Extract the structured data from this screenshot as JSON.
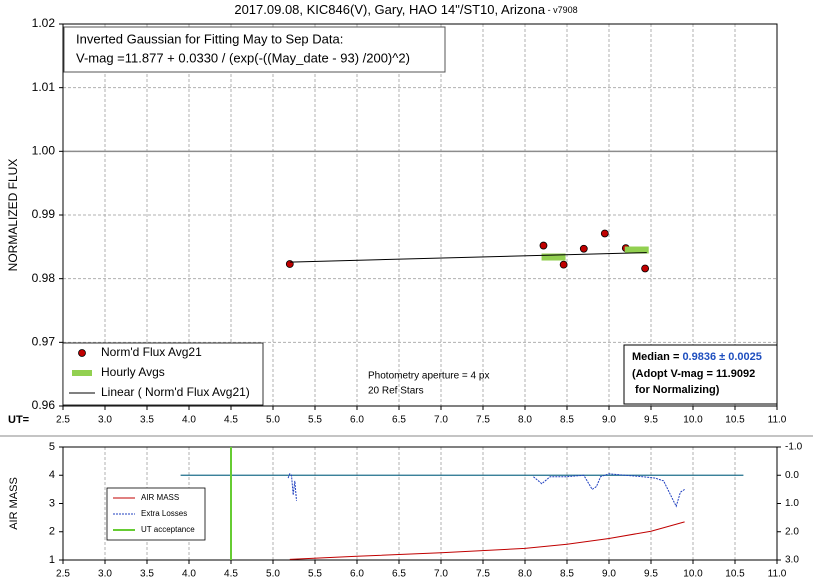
{
  "chart_data": [
    {
      "type": "scatter",
      "title": "2017.09.08, KIC846(V), Gary, HAO 14\"/ST10, Arizona",
      "title_suffix": " - v7908",
      "y_label": "NORMALIZED FLUX",
      "x_prefix": "UT=",
      "xlim": [
        2.5,
        11.0
      ],
      "xticks": [
        2.5,
        {
          "value": 3,
          "label": "3.0"
        },
        3.5,
        {
          "value": 4,
          "label": "4.0"
        },
        4.5,
        {
          "value": 5,
          "label": "5.0"
        },
        5.5,
        {
          "value": 6,
          "label": "6.0"
        },
        6.5,
        {
          "value": 7,
          "label": "7.0"
        },
        7.5,
        {
          "value": 8,
          "label": "8.0"
        },
        8.5,
        {
          "value": 9,
          "label": "9.0"
        },
        9.5,
        {
          "value": 10,
          "label": "10.0"
        },
        10.5,
        {
          "value": 11,
          "label": "11.0"
        }
      ],
      "ylim": [
        0.96,
        1.02
      ],
      "yticks": [
        0.96,
        0.97,
        0.98,
        0.99,
        {
          "value": 1,
          "label": "1.00"
        },
        1.01,
        1.02
      ],
      "grid": "both",
      "hline": 1,
      "series": [
        {
          "name": "Norm'd Flux Avg21",
          "style": "marker",
          "color": "#c00000",
          "x": [
            5.2,
            8.22,
            8.46,
            8.7,
            8.95,
            9.2,
            9.43
          ],
          "values": [
            0.9823,
            0.9852,
            0.9822,
            0.9847,
            0.9871,
            0.9848,
            0.9816
          ]
        },
        {
          "name": "Hourly Avgs",
          "style": "bar",
          "color": "#92d050",
          "x": [
            8.34,
            9.33
          ],
          "values": [
            0.9834,
            0.9845
          ]
        },
        {
          "name": "Linear ( Norm'd Flux Avg21)",
          "style": "line",
          "color": "#000000",
          "x": [
            5.2,
            9.45
          ],
          "values": [
            0.9826,
            0.9841
          ]
        }
      ],
      "fit_box": [
        "Inverted Gaussian for Fitting May to Sep Data:",
        "V-mag =11.877 + 0.0330 / (exp(-((May_date - 93) /200)^2)"
      ],
      "notes": [
        "Photometry aperture = 4 px",
        "20 Ref Stars"
      ],
      "median_box": {
        "label": "Median = ",
        "value": "0.9836 ± 0.0025",
        "lines": [
          "(Adopt V-mag = 11.9092",
          " for Normalizing)"
        ]
      }
    },
    {
      "type": "line",
      "y_label": "AIR MASS",
      "xlim": [
        2.5,
        11.0
      ],
      "xticks": [
        2.5,
        {
          "value": 3,
          "label": "3.0"
        },
        3.5,
        {
          "value": 4,
          "label": "4.0"
        },
        4.5,
        {
          "value": 5,
          "label": "5.0"
        },
        5.5,
        {
          "value": 6,
          "label": "6.0"
        },
        6.5,
        {
          "value": 7,
          "label": "7.0"
        },
        7.5,
        {
          "value": 8,
          "label": "8.0"
        },
        8.5,
        {
          "value": 9,
          "label": "9.0"
        },
        9.5,
        {
          "value": 10,
          "label": "10.0"
        },
        10.5,
        {
          "value": 11,
          "label": "11.0"
        }
      ],
      "ylim": [
        1,
        5
      ],
      "yticks": [
        1,
        2,
        3,
        4,
        5
      ],
      "y2lim": [
        3,
        -1
      ],
      "y2ticks": [
        {
          "value": -1,
          "label": "-1.0"
        },
        {
          "value": 0,
          "label": "0.0"
        },
        {
          "value": 1,
          "label": "1.0"
        },
        {
          "value": 2,
          "label": "2.0"
        },
        {
          "value": 3,
          "label": "3.0"
        }
      ],
      "grid": "x",
      "reference_line": {
        "axis": "y2",
        "value": 0,
        "x": [
          3.9,
          10.6
        ],
        "color": "#1f6f8b"
      },
      "series": [
        {
          "name": "AIR MASS",
          "style": "line",
          "color": "#c00000",
          "x": [
            5.2,
            6.0,
            7.0,
            8.0,
            8.5,
            9.0,
            9.5,
            9.9
          ],
          "values": [
            1.02,
            1.13,
            1.26,
            1.41,
            1.56,
            1.76,
            2.02,
            2.35
          ]
        },
        {
          "name": "Extra Losses",
          "style": "dotted",
          "color": "#1f3fbf",
          "axis": "y2",
          "x": [
            5.18,
            5.2,
            5.22,
            5.24,
            5.26,
            5.28,
            8.0,
            8.1,
            8.2,
            8.3,
            8.5,
            8.7,
            8.8,
            8.85,
            8.9,
            9.0,
            9.2,
            9.4,
            9.55,
            9.65,
            9.75,
            9.8,
            9.85,
            9.9
          ],
          "values": [
            0.1,
            -0.05,
            0.0,
            0.7,
            0.2,
            0.9,
            null,
            0.05,
            0.3,
            0.05,
            0.05,
            0.0,
            0.5,
            0.4,
            0.05,
            -0.05,
            0.0,
            0.05,
            0.1,
            0.2,
            0.8,
            1.1,
            0.6,
            0.5
          ]
        },
        {
          "name": "UT acceptance",
          "style": "vline",
          "color": "#66cc33",
          "x": [
            4.5
          ]
        }
      ]
    }
  ]
}
